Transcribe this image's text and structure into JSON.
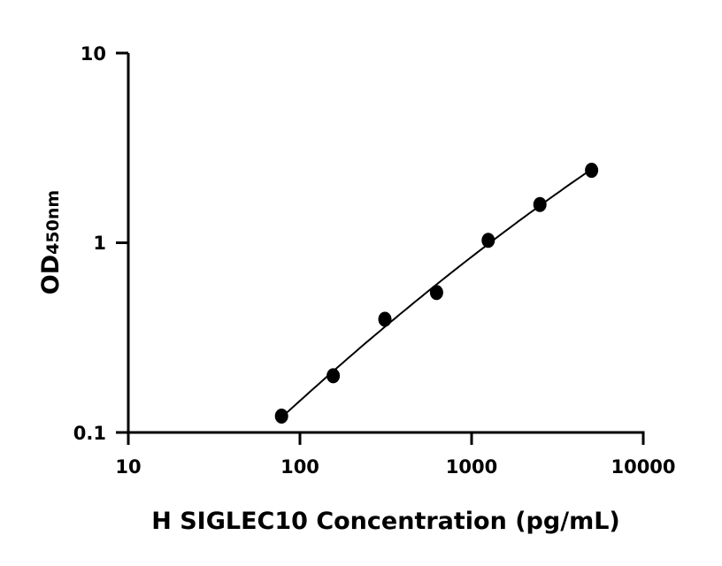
{
  "chart_data": {
    "type": "scatter",
    "xlabel": "H SIGLEC10 Concentration (pg/mL)",
    "ylabel": "OD",
    "ylabel_subscript": "450nm",
    "xscale": "log",
    "yscale": "log",
    "xlim": [
      10,
      10000
    ],
    "ylim": [
      0.1,
      10
    ],
    "xticks": [
      "10",
      "100",
      "1000",
      "10000"
    ],
    "yticks": [
      "0.1",
      "1",
      "10"
    ],
    "grid": false,
    "fit_line": true,
    "series": [
      {
        "x": [
          78.125,
          156.25,
          312.5,
          625,
          1250,
          2500,
          5000
        ],
        "y": [
          0.122,
          0.199,
          0.395,
          0.547,
          1.03,
          1.59,
          2.41
        ]
      }
    ],
    "colors": {
      "points": "#000000",
      "line": "#000000"
    }
  }
}
